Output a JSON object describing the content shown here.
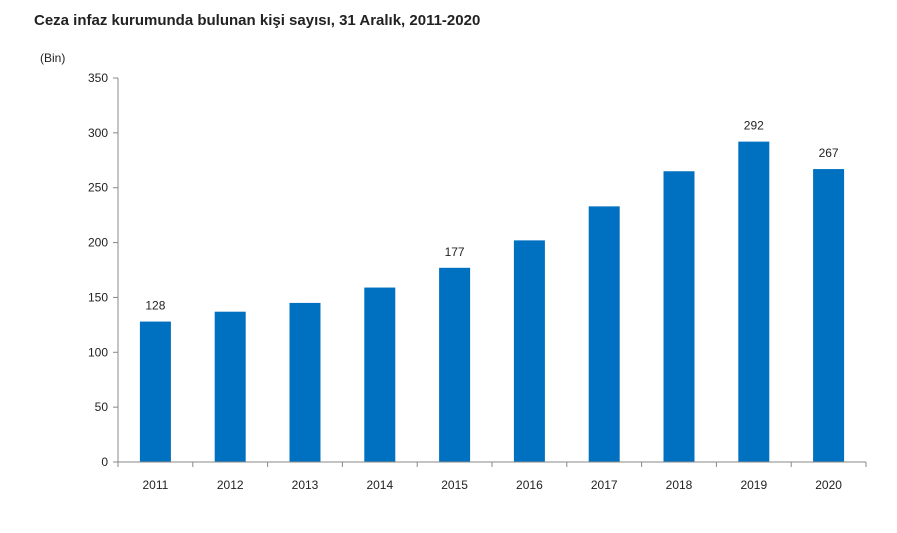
{
  "chart_data": {
    "type": "bar",
    "title": "Ceza infaz kurumunda bulunan kişi sayısı, 31 Aralık, 2011-2020",
    "unit_label": "(Bin)",
    "xlabel": "",
    "ylabel": "",
    "categories": [
      "2011",
      "2012",
      "2013",
      "2014",
      "2015",
      "2016",
      "2017",
      "2018",
      "2019",
      "2020"
    ],
    "values": [
      128,
      137,
      145,
      159,
      177,
      202,
      233,
      265,
      292,
      267
    ],
    "data_labels": [
      "128",
      "",
      "",
      "",
      "177",
      "",
      "",
      "",
      "292",
      "267"
    ],
    "ylim": [
      0,
      350
    ],
    "yticks": [
      0,
      50,
      100,
      150,
      200,
      250,
      300,
      350
    ],
    "grid": false,
    "legend": "none",
    "bar_color": "#0070C0",
    "axis_color": "#888888",
    "text_color": "#222222"
  }
}
